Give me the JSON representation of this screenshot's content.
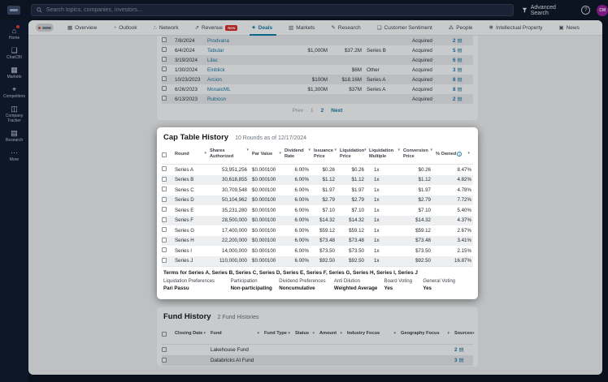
{
  "topbar": {
    "search_placeholder": "Search topics, companies, investors...",
    "advanced_search_label": "Advanced Search",
    "help_label": "?",
    "avatar_initials": "CM"
  },
  "sidebar": {
    "items": [
      {
        "label": "Home",
        "icon": "home-icon",
        "glyph": "⌂",
        "notification": true
      },
      {
        "label": "ChatCBI",
        "icon": "chat-icon",
        "glyph": "❏"
      },
      {
        "label": "Markets",
        "icon": "markets-grid-icon",
        "glyph": "▦"
      },
      {
        "label": "Competitors",
        "icon": "competitors-icon",
        "glyph": "⌖"
      },
      {
        "label": "Company Tracker",
        "icon": "company-tracker-icon",
        "glyph": "◫"
      },
      {
        "label": "Research",
        "icon": "research-icon",
        "glyph": "▤"
      },
      {
        "label": "More",
        "icon": "more-icon",
        "glyph": "⋯"
      }
    ]
  },
  "tabs": {
    "active": "Deals",
    "new_badge": "New",
    "items": [
      {
        "label": "Overview",
        "glyph": "▦"
      },
      {
        "label": "Outlook",
        "glyph": "◔"
      },
      {
        "label": "Network",
        "glyph": "∴"
      },
      {
        "label": "Revenue",
        "glyph": "⇗",
        "badge": "New"
      },
      {
        "label": "Deals",
        "glyph": "✦",
        "active": true
      },
      {
        "label": "Markets",
        "glyph": "▥"
      },
      {
        "label": "Research",
        "glyph": "✎"
      },
      {
        "label": "Customer Sentiment",
        "glyph": "❑"
      },
      {
        "label": "People",
        "glyph": "⁂"
      },
      {
        "label": "Intellectual Property",
        "glyph": "❋"
      },
      {
        "label": "News",
        "glyph": "▣"
      }
    ]
  },
  "deals_table": {
    "rows": [
      {
        "date": "7/8/2024",
        "company": "Prodvana",
        "deal_size": "",
        "valuation": "",
        "round": "",
        "status": "Acquired",
        "sources": "2"
      },
      {
        "date": "6/4/2024",
        "company": "Tabular",
        "deal_size": "$1,000M",
        "valuation": "$37.2M",
        "round": "Series B",
        "status": "Acquired",
        "sources": "5"
      },
      {
        "date": "3/19/2024",
        "company": "Lilac",
        "deal_size": "",
        "valuation": "",
        "round": "",
        "status": "Acquired",
        "sources": "6"
      },
      {
        "date": "1/30/2024",
        "company": "Einblick",
        "deal_size": "",
        "valuation": "$6M",
        "round": "Other",
        "status": "Acquired",
        "sources": "3"
      },
      {
        "date": "10/23/2023",
        "company": "Arcion",
        "deal_size": "$100M",
        "valuation": "$18.16M",
        "round": "Series A",
        "status": "Acquired",
        "sources": "8"
      },
      {
        "date": "6/26/2023",
        "company": "MosaicML",
        "deal_size": "$1,300M",
        "valuation": "$37M",
        "round": "Series A",
        "status": "Acquired",
        "sources": "8"
      },
      {
        "date": "6/13/2023",
        "company": "Rubicon",
        "deal_size": "",
        "valuation": "",
        "round": "",
        "status": "Acquired",
        "sources": "2"
      }
    ],
    "pagination": {
      "prev": "Prev",
      "page1": "1",
      "page2": "2",
      "next": "Next",
      "current": "2"
    }
  },
  "cap_table": {
    "title": "Cap Table History",
    "subtitle": "10 Rounds as of 12/17/2024",
    "columns": [
      {
        "l1": "Round",
        "l2": ""
      },
      {
        "l1": "Shares",
        "l2": "Authorized"
      },
      {
        "l1": "Par Value",
        "l2": ""
      },
      {
        "l1": "Dividend",
        "l2": "Rate"
      },
      {
        "l1": "Issuance",
        "l2": "Price"
      },
      {
        "l1": "Liquidation",
        "l2": "Price"
      },
      {
        "l1": "Liquidation",
        "l2": "Multiple"
      },
      {
        "l1": "Conversion",
        "l2": "Price"
      },
      {
        "l1": "% Owned",
        "l2": "",
        "info": true
      }
    ],
    "rows": [
      {
        "round": "Series A",
        "shares": "53,951,256",
        "par": "$0.000100",
        "dividend": "6.00%",
        "issuance": "$0.26",
        "liq_price": "$0.26",
        "liq_mult": "1x",
        "conversion": "$0.26",
        "owned": "8.47%"
      },
      {
        "round": "Series B",
        "shares": "30,618,855",
        "par": "$0.000100",
        "dividend": "6.00%",
        "issuance": "$1.12",
        "liq_price": "$1.12",
        "liq_mult": "1x",
        "conversion": "$1.12",
        "owned": "4.82%"
      },
      {
        "round": "Series C",
        "shares": "30,709,548",
        "par": "$0.000100",
        "dividend": "6.00%",
        "issuance": "$1.97",
        "liq_price": "$1.97",
        "liq_mult": "1x",
        "conversion": "$1.97",
        "owned": "4.78%"
      },
      {
        "round": "Series D",
        "shares": "50,104,962",
        "par": "$0.000100",
        "dividend": "6.00%",
        "issuance": "$2.79",
        "liq_price": "$2.79",
        "liq_mult": "1x",
        "conversion": "$2.79",
        "owned": "7.72%"
      },
      {
        "round": "Series E",
        "shares": "35,231,280",
        "par": "$0.000100",
        "dividend": "6.00%",
        "issuance": "$7.10",
        "liq_price": "$7.10",
        "liq_mult": "1x",
        "conversion": "$7.10",
        "owned": "5.40%"
      },
      {
        "round": "Series F",
        "shares": "28,500,000",
        "par": "$0.000100",
        "dividend": "6.00%",
        "issuance": "$14.32",
        "liq_price": "$14.32",
        "liq_mult": "1x",
        "conversion": "$14.32",
        "owned": "4.37%"
      },
      {
        "round": "Series G",
        "shares": "17,400,000",
        "par": "$0.000100",
        "dividend": "6.00%",
        "issuance": "$59.12",
        "liq_price": "$59.12",
        "liq_mult": "1x",
        "conversion": "$59.12",
        "owned": "2.67%"
      },
      {
        "round": "Series H",
        "shares": "22,200,000",
        "par": "$0.000100",
        "dividend": "6.00%",
        "issuance": "$73.48",
        "liq_price": "$73.48",
        "liq_mult": "1x",
        "conversion": "$73.48",
        "owned": "3.41%"
      },
      {
        "round": "Series I",
        "shares": "14,000,000",
        "par": "$0.000100",
        "dividend": "6.00%",
        "issuance": "$73.50",
        "liq_price": "$73.50",
        "liq_mult": "1x",
        "conversion": "$73.50",
        "owned": "2.15%"
      },
      {
        "round": "Series J",
        "shares": "110,000,000",
        "par": "$0.000100",
        "dividend": "6.00%",
        "issuance": "$92.50",
        "liq_price": "$92.50",
        "liq_mult": "1x",
        "conversion": "$92.50",
        "owned": "16.87%"
      }
    ],
    "terms": {
      "heading": "Terms for Series A, Series B, Series C, Series D, Series E, Series F, Series G, Series H, Series I, Series J",
      "pairs": [
        {
          "label": "Liquidation Preferences",
          "value": "Pari Passu"
        },
        {
          "label": "Participation",
          "value": "Non-participating"
        },
        {
          "label": "Dividend Preferences",
          "value": "Noncumulative"
        },
        {
          "label": "Anti Dilution",
          "value": "Weighted Average"
        },
        {
          "label": "Board Voting",
          "value": "Yes"
        },
        {
          "label": "General Voting",
          "value": "Yes"
        }
      ]
    }
  },
  "fund_history": {
    "title": "Fund History",
    "subtitle": "2 Fund Histories",
    "columns": [
      "Closing Date",
      "Fund",
      "Fund Type",
      "Status",
      "Amount",
      "Industry Focus",
      "Geography Focus",
      "Sources"
    ],
    "rows": [
      {
        "fund": "Lakehouse Fund",
        "sources": "2"
      },
      {
        "fund": "Databricks AI Fund",
        "sources": "3"
      }
    ]
  },
  "colors": {
    "accent_teal": "#0e7fa6",
    "link_blue": "#1879a3",
    "badge_red": "#e02b2b",
    "navy_bg": "#0a111f",
    "avatar_purple": "#9b1f9e"
  }
}
